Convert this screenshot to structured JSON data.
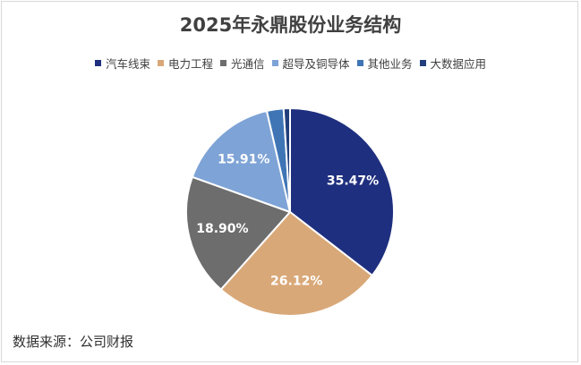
{
  "chart_data": {
    "type": "pie",
    "title": "2025年永鼎股份业务结构",
    "start_angle_deg": 0,
    "direction": "clockwise",
    "legend_position": "top",
    "slices": [
      {
        "name": "汽车线束",
        "value": 35.47,
        "label": "35.47%",
        "color": "#1f2f7f",
        "show_label": true
      },
      {
        "name": "电力工程",
        "value": 26.12,
        "label": "26.12%",
        "color": "#d9a878",
        "show_label": true
      },
      {
        "name": "光通信",
        "value": 18.9,
        "label": "18.90%",
        "color": "#6d6d6d",
        "show_label": true
      },
      {
        "name": "超导及铜导体",
        "value": 15.91,
        "label": "15.91%",
        "color": "#7ea3d6",
        "show_label": true
      },
      {
        "name": "其他业务",
        "value": 2.6,
        "label": "",
        "color": "#3f75b5",
        "show_label": false
      },
      {
        "name": "大数据应用",
        "value": 1.0,
        "label": "",
        "color": "#223f7c",
        "show_label": false
      }
    ]
  },
  "source": "数据来源：公司财报"
}
